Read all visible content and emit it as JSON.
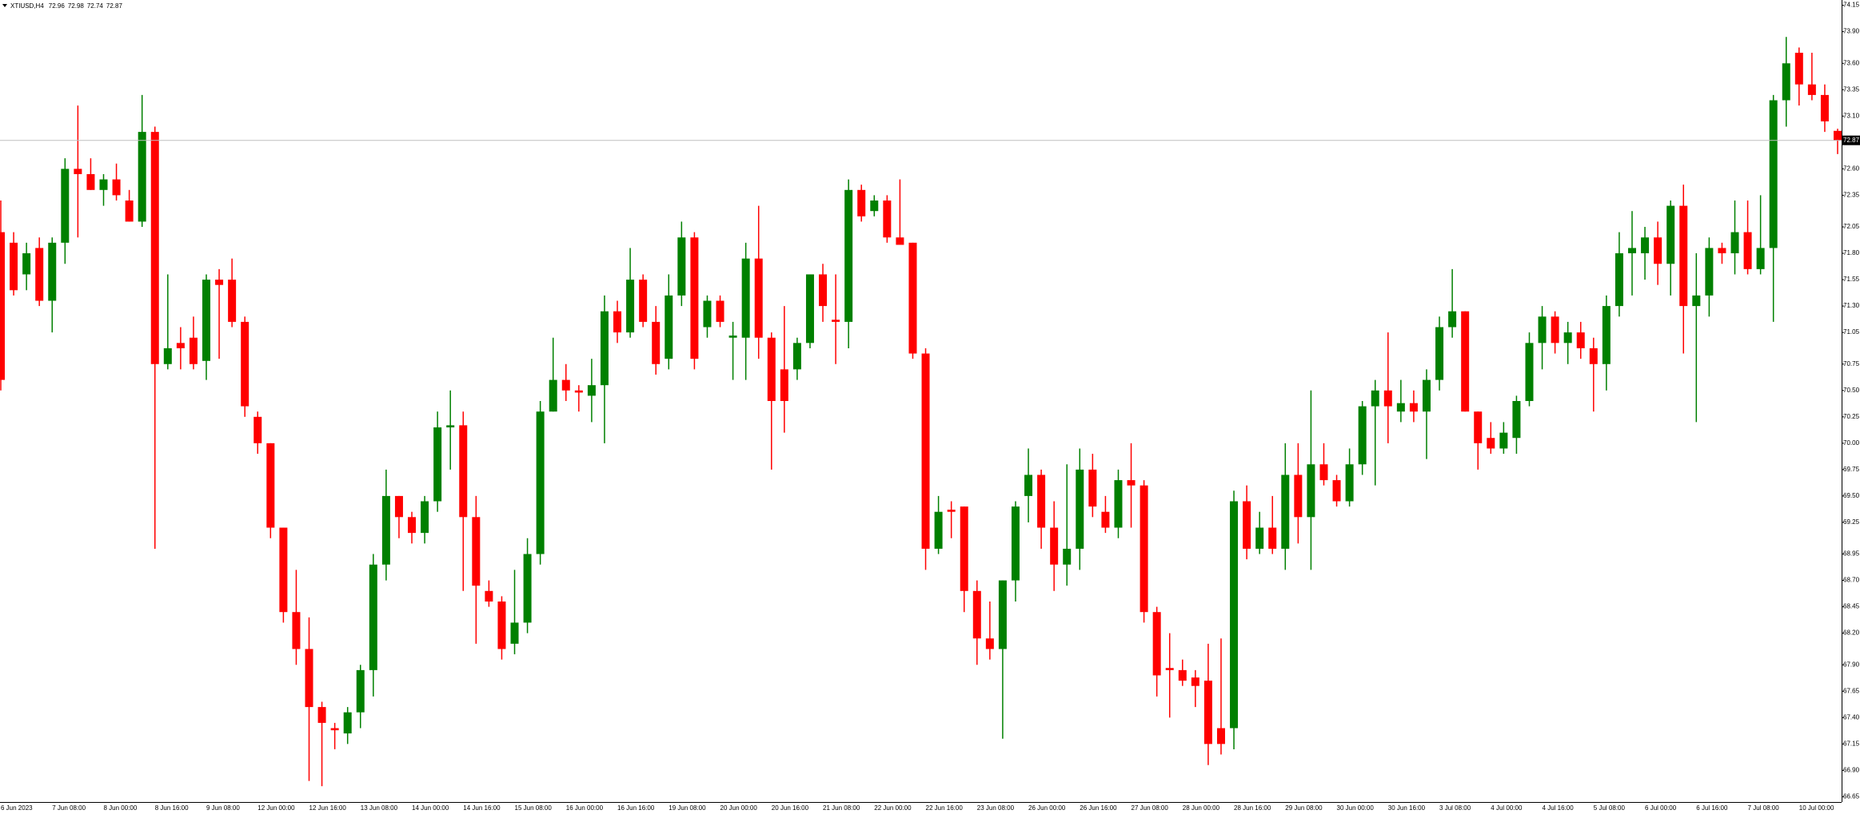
{
  "chart_data": {
    "type": "candlestick",
    "symbol": "XTIUSD,H4",
    "categories": [
      "6 Jun 2023",
      null,
      null,
      null,
      "7 Jun 08:00",
      null,
      null,
      null,
      "8 Jun 00:00",
      null,
      null,
      null,
      "8 Jun 16:00",
      null,
      null,
      null,
      "9 Jun 08:00",
      null,
      null,
      null,
      "12 Jun 00:00",
      null,
      null,
      null,
      "12 Jun 16:00",
      null,
      null,
      null,
      "13 Jun 08:00",
      null,
      null,
      null,
      "14 Jun 00:00",
      null,
      null,
      null,
      "14 Jun 16:00",
      null,
      null,
      null,
      "15 Jun 08:00",
      null,
      null,
      null,
      "16 Jun 00:00",
      null,
      null,
      null,
      "16 Jun 16:00",
      null,
      null,
      null,
      "19 Jun 08:00",
      null,
      null,
      null,
      "20 Jun 00:00",
      null,
      null,
      null,
      "20 Jun 16:00",
      null,
      null,
      null,
      "21 Jun 08:00",
      null,
      null,
      null,
      "22 Jun 00:00",
      null,
      null,
      null,
      "22 Jun 16:00",
      null,
      null,
      null,
      "23 Jun 08:00",
      null,
      null,
      null,
      "26 Jun 00:00",
      null,
      null,
      null,
      "26 Jun 16:00",
      null,
      null,
      null,
      "27 Jun 08:00",
      null,
      null,
      null,
      "28 Jun 00:00",
      null,
      null,
      null,
      "28 Jun 16:00",
      null,
      null,
      null,
      "29 Jun 08:00",
      null,
      null,
      null,
      "30 Jun 00:00",
      null,
      null,
      null,
      "30 Jun 16:00",
      null,
      null,
      null,
      "3 Jul 08:00",
      null,
      null,
      null,
      "4 Jul 00:00",
      null,
      null,
      null,
      "4 Jul 16:00",
      null,
      null,
      null,
      "5 Jul 08:00",
      null,
      null,
      null,
      "6 Jul 00:00",
      null,
      null,
      null,
      "6 Jul 16:00",
      null,
      null,
      null,
      "7 Jul 08:00",
      null,
      null,
      null,
      "10 Jul 00:00",
      null,
      null,
      null
    ],
    "open": [
      72.0,
      71.9,
      71.6,
      71.85,
      71.35,
      71.9,
      72.6,
      72.55,
      72.4,
      72.5,
      72.3,
      72.1,
      72.95,
      70.75,
      70.95,
      71.0,
      70.78,
      71.55,
      71.55,
      71.15,
      70.25,
      70.0,
      69.2,
      68.4,
      68.05,
      67.5,
      67.3,
      67.25,
      67.45,
      67.85,
      68.85,
      69.5,
      69.3,
      69.15,
      69.45,
      70.15,
      70.17,
      69.3,
      68.6,
      68.5,
      68.1,
      68.3,
      68.95,
      70.3,
      70.6,
      70.5,
      70.45,
      70.55,
      71.25,
      71.05,
      71.55,
      71.15,
      70.8,
      71.4,
      71.95,
      71.1,
      71.35,
      71.0,
      71.0,
      71.75,
      71.0,
      70.7,
      70.7,
      70.95,
      71.6,
      71.17,
      71.15,
      72.4,
      72.2,
      72.3,
      71.95,
      71.9,
      70.85,
      69.0,
      69.37,
      69.4,
      68.6,
      68.15,
      68.05,
      68.7,
      69.5,
      69.7,
      69.2,
      68.85,
      69.0,
      69.75,
      69.35,
      69.2,
      69.65,
      69.6,
      68.4,
      67.87,
      67.85,
      67.78,
      67.75,
      67.3,
      67.3,
      69.45,
      69.0,
      69.2,
      69.0,
      69.7,
      69.3,
      69.8,
      69.65,
      69.45,
      69.8,
      70.35,
      70.5,
      70.3,
      70.38,
      70.3,
      70.6,
      71.1,
      71.25,
      70.3,
      70.05,
      69.95,
      70.05,
      70.4,
      70.95,
      71.2,
      70.95,
      71.05,
      70.9,
      70.75,
      71.3,
      71.8,
      71.8,
      71.95,
      71.7,
      72.25,
      71.3,
      71.4,
      71.85,
      71.8,
      72.0,
      71.65,
      71.85,
      73.25,
      73.7,
      73.4,
      73.3,
      72.96
    ],
    "high": [
      72.3,
      72.0,
      71.9,
      71.95,
      71.95,
      72.7,
      73.2,
      72.7,
      72.55,
      72.65,
      72.4,
      73.3,
      73.0,
      71.6,
      71.1,
      71.2,
      71.6,
      71.65,
      71.75,
      71.2,
      70.3,
      70.0,
      69.2,
      68.8,
      68.35,
      67.55,
      67.35,
      67.5,
      67.9,
      68.95,
      69.75,
      69.5,
      69.35,
      69.5,
      70.3,
      70.5,
      70.3,
      69.5,
      68.7,
      68.55,
      68.8,
      69.1,
      70.4,
      71.0,
      70.75,
      70.55,
      70.8,
      71.4,
      71.35,
      71.85,
      71.6,
      71.3,
      71.6,
      72.1,
      72.0,
      71.4,
      71.4,
      71.15,
      71.9,
      72.25,
      71.05,
      71.3,
      71.0,
      71.6,
      71.7,
      71.6,
      72.5,
      72.45,
      72.35,
      72.35,
      72.5,
      71.9,
      70.9,
      69.5,
      69.45,
      69.4,
      68.7,
      68.5,
      68.7,
      69.45,
      69.95,
      69.75,
      69.45,
      69.8,
      69.95,
      69.9,
      69.5,
      69.75,
      70.0,
      69.65,
      68.45,
      68.2,
      67.95,
      67.85,
      68.1,
      68.15,
      69.55,
      69.6,
      69.35,
      69.5,
      70.0,
      70.0,
      70.5,
      70.0,
      69.7,
      69.95,
      70.4,
      70.6,
      71.05,
      70.6,
      70.5,
      70.7,
      71.2,
      71.65,
      71.25,
      70.3,
      70.2,
      70.2,
      70.45,
      71.05,
      71.3,
      71.25,
      71.15,
      71.15,
      71.0,
      71.4,
      72.0,
      72.2,
      72.05,
      72.1,
      72.3,
      72.45,
      71.8,
      71.95,
      71.9,
      72.3,
      72.3,
      72.35,
      73.3,
      73.85,
      73.75,
      73.7,
      73.4,
      72.98
    ],
    "low": [
      70.5,
      71.4,
      71.45,
      71.3,
      71.05,
      71.7,
      71.95,
      72.4,
      72.25,
      72.3,
      72.1,
      72.05,
      69.0,
      70.7,
      70.7,
      70.7,
      70.6,
      70.8,
      71.1,
      70.25,
      69.9,
      69.1,
      68.3,
      67.9,
      66.8,
      66.75,
      67.1,
      67.15,
      67.3,
      67.6,
      68.7,
      69.1,
      69.05,
      69.05,
      69.35,
      69.75,
      68.6,
      68.1,
      68.45,
      67.95,
      68.0,
      68.2,
      68.85,
      70.3,
      70.4,
      70.3,
      70.2,
      70.0,
      70.95,
      71.0,
      71.1,
      70.65,
      70.7,
      71.3,
      70.7,
      71.0,
      71.1,
      70.6,
      70.6,
      70.8,
      69.75,
      70.1,
      70.6,
      70.9,
      71.15,
      70.75,
      70.9,
      72.1,
      72.15,
      71.9,
      71.9,
      70.8,
      68.8,
      68.95,
      69.1,
      68.4,
      67.9,
      67.95,
      67.2,
      68.5,
      69.25,
      69.0,
      68.6,
      68.65,
      68.8,
      69.3,
      69.15,
      69.1,
      69.2,
      68.3,
      67.6,
      67.4,
      67.7,
      67.5,
      66.95,
      67.05,
      67.1,
      68.9,
      68.95,
      68.95,
      68.8,
      69.05,
      68.8,
      69.6,
      69.4,
      69.4,
      69.7,
      69.6,
      70.0,
      70.2,
      70.2,
      69.85,
      70.5,
      71.0,
      70.3,
      69.75,
      69.9,
      69.9,
      69.9,
      70.35,
      70.7,
      70.85,
      70.75,
      70.8,
      70.3,
      70.5,
      71.2,
      71.4,
      71.55,
      71.5,
      71.4,
      70.85,
      70.2,
      71.2,
      71.7,
      71.6,
      71.6,
      71.6,
      71.15,
      73.0,
      73.2,
      73.25,
      72.95,
      72.74
    ],
    "close": [
      70.6,
      71.45,
      71.8,
      71.35,
      71.9,
      72.6,
      72.55,
      72.4,
      72.5,
      72.35,
      72.1,
      72.95,
      70.75,
      70.9,
      70.9,
      70.75,
      71.55,
      71.5,
      71.15,
      70.35,
      70.0,
      69.2,
      68.4,
      68.05,
      67.5,
      67.35,
      67.28,
      67.45,
      67.85,
      68.85,
      69.5,
      69.3,
      69.15,
      69.45,
      70.15,
      70.17,
      69.3,
      68.65,
      68.5,
      68.05,
      68.3,
      68.95,
      70.3,
      70.6,
      70.5,
      70.48,
      70.55,
      71.25,
      71.05,
      71.55,
      71.15,
      70.75,
      71.4,
      71.95,
      70.8,
      71.35,
      71.15,
      71.02,
      71.75,
      71.0,
      70.4,
      70.4,
      70.95,
      71.6,
      71.3,
      71.15,
      72.4,
      72.15,
      72.3,
      71.95,
      71.88,
      70.85,
      69.0,
      69.35,
      69.35,
      68.6,
      68.15,
      68.05,
      68.7,
      69.4,
      69.7,
      69.2,
      68.85,
      69.0,
      69.75,
      69.4,
      69.2,
      69.65,
      69.6,
      68.4,
      67.8,
      67.85,
      67.75,
      67.7,
      67.15,
      67.15,
      69.45,
      69.0,
      69.2,
      69.0,
      69.7,
      69.3,
      69.8,
      69.65,
      69.45,
      69.8,
      70.35,
      70.5,
      70.35,
      70.38,
      70.3,
      70.6,
      71.1,
      71.25,
      70.3,
      70.0,
      69.95,
      70.1,
      70.4,
      70.95,
      71.2,
      70.95,
      71.05,
      70.9,
      70.75,
      71.3,
      71.8,
      71.85,
      71.95,
      71.7,
      72.25,
      71.3,
      71.4,
      71.85,
      71.8,
      72.0,
      71.65,
      71.85,
      73.25,
      73.6,
      73.4,
      73.3,
      73.05,
      72.87
    ],
    "up_color": "#008000",
    "down_color": "#ff0000",
    "ylim": [
      66.6,
      74.2
    ],
    "yticks": [
      74.15,
      {
        "value": 73.9,
        "label": "73.90"
      },
      {
        "value": 73.6,
        "label": "73.60"
      },
      73.35,
      {
        "value": 73.1,
        "label": "73.10"
      },
      {
        "value": 72.6,
        "label": "72.60"
      },
      72.35,
      72.05,
      {
        "value": 71.8,
        "label": "71.80"
      },
      71.55,
      {
        "value": 71.3,
        "label": "71.30"
      },
      71.05,
      70.75,
      {
        "value": 70.5,
        "label": "70.50"
      },
      70.25,
      {
        "value": 70,
        "label": "70.00"
      },
      69.75,
      {
        "value": 69.5,
        "label": "69.50"
      },
      69.25,
      68.95,
      {
        "value": 68.7,
        "label": "68.70"
      },
      68.45,
      {
        "value": 68.2,
        "label": "68.20"
      },
      {
        "value": 67.9,
        "label": "67.90"
      },
      67.65,
      {
        "value": 67.4,
        "label": "67.40"
      },
      67.15,
      {
        "value": 66.9,
        "label": "66.90"
      },
      66.65
    ],
    "grid": false
  }
}
